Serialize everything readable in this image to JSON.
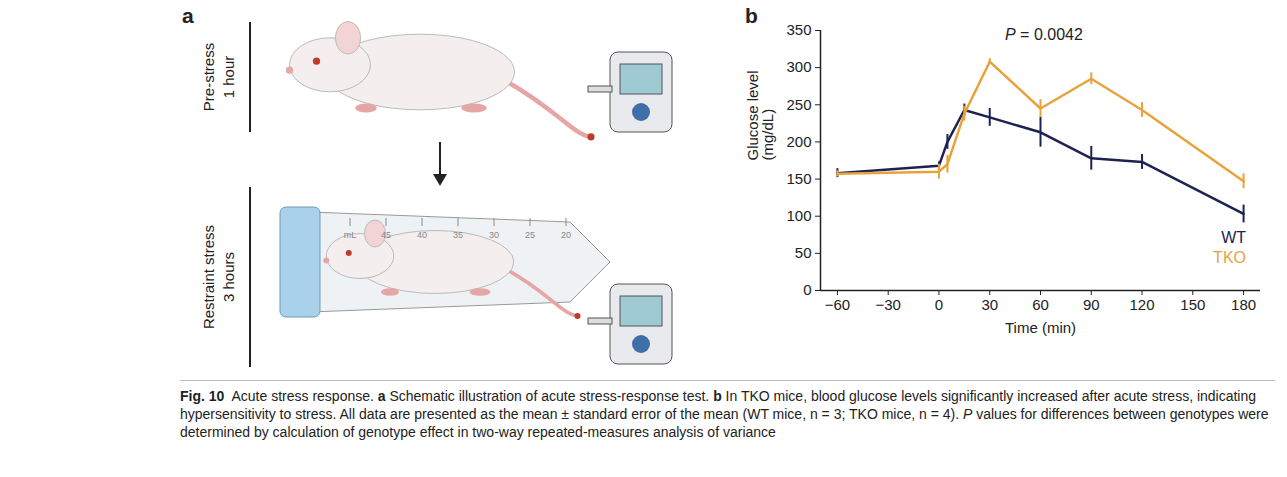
{
  "chart_data": {
    "type": "line",
    "panel_label": "b",
    "annotation": [
      {
        "text": "P",
        "style": "italic"
      },
      {
        "text": " = 0.0042"
      }
    ],
    "xlabel": "Time (min)",
    "ylabel": "Glucose level (mg/dL)",
    "x": [
      -60,
      0,
      5,
      15,
      30,
      60,
      90,
      120,
      180
    ],
    "xlim": [
      -70,
      190
    ],
    "xticks": [
      -60,
      -30,
      0,
      30,
      60,
      90,
      120,
      150,
      180
    ],
    "ylim": [
      0,
      350
    ],
    "yticks": [
      0,
      50,
      100,
      150,
      200,
      250,
      300,
      350
    ],
    "legend": "bottom-right",
    "series": [
      {
        "name": "WT",
        "color": "#1c2353",
        "values": [
          158,
          168,
          200,
          243,
          233,
          213,
          178,
          173,
          103
        ],
        "error": [
          6,
          5,
          10,
          8,
          12,
          20,
          16,
          10,
          12
        ]
      },
      {
        "name": "TKO",
        "color": "#e9a23b",
        "values": [
          157,
          160,
          170,
          238,
          308,
          245,
          285,
          243,
          147
        ],
        "error": [
          4,
          10,
          12,
          10,
          4,
          12,
          8,
          10,
          10
        ]
      }
    ]
  },
  "schematic": {
    "panel_label": "a",
    "stages": [
      {
        "label": "Pre-stress",
        "duration": "1 hour"
      },
      {
        "label": "Restraint stress",
        "duration": "3 hours"
      }
    ],
    "tube_unit": "mL",
    "tube_graduations": [
      "45",
      "40",
      "35",
      "30",
      "25",
      "20"
    ]
  },
  "caption": [
    {
      "text": "Fig. 10",
      "style": "bold"
    },
    {
      "text": " Acute stress response. "
    },
    {
      "text": "a",
      "style": "bold"
    },
    {
      "text": " Schematic illustration of acute stress-response test. "
    },
    {
      "text": "b",
      "style": "bold"
    },
    {
      "text": " In TKO mice, blood glucose levels significantly increased after acute stress, indicating hypersensitivity to stress. All data are presented as the mean ± standard error of the mean (WT mice, n = 3; TKO mice, n = 4). "
    },
    {
      "text": "P",
      "style": "italic"
    },
    {
      "text": " values for differences between genotypes were determined by calculation of genotype effect in two-way repeated-measures analysis of variance"
    }
  ]
}
